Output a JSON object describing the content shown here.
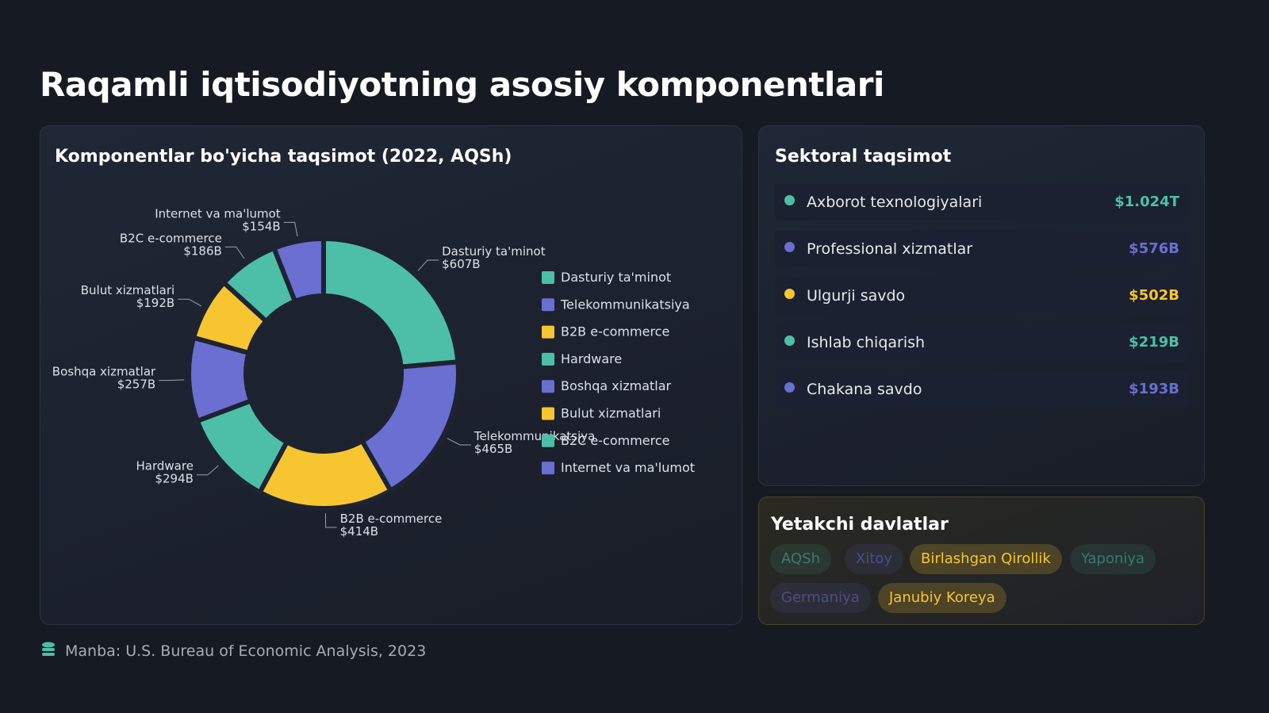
{
  "title": "Raqamli iqtisodiyotning asosiy komponentlari",
  "chart_data": {
    "type": "donut",
    "title": "Komponentlar bo'yicha taqsimot (2022, AQSh)",
    "categories": [
      "Dasturiy ta'minot",
      "Telekommunikatsiya",
      "B2B e-commerce",
      "Hardware",
      "Boshqa xizmatlar",
      "Bulut xizmatlari",
      "B2C e-commerce",
      "Internet va ma'lumot"
    ],
    "values": [
      607,
      465,
      414,
      294,
      257,
      192,
      186,
      154
    ],
    "value_labels": [
      "$607B",
      "$465B",
      "$414B",
      "$294B",
      "$257B",
      "$192B",
      "$186B",
      "$154B"
    ],
    "colors": [
      "#4dbfa8",
      "#6a6fd1",
      "#f6c530",
      "#4dbfa8",
      "#6a6fd1",
      "#f6c530",
      "#4dbfa8",
      "#6a6fd1"
    ]
  },
  "sectors": {
    "title": "Sektoral taqsimot",
    "items": [
      {
        "name": "Axborot texnologiyalari",
        "value": "$1.024T",
        "color": "#4dbfa8"
      },
      {
        "name": "Professional xizmatlar",
        "value": "$576B",
        "color": "#6a6fd1"
      },
      {
        "name": "Ulgurji savdo",
        "value": "$502B",
        "color": "#f6c530"
      },
      {
        "name": "Ishlab chiqarish",
        "value": "$219B",
        "color": "#4dbfa8"
      },
      {
        "name": "Chakana savdo",
        "value": "$193B",
        "color": "#6a6fd1"
      }
    ]
  },
  "countries": {
    "title": "Yetakchi davlatlar",
    "items": [
      {
        "name": "AQSh",
        "color": "#4dbfa8"
      },
      {
        "name": "Xitoy",
        "color": "#6a6fd1"
      },
      {
        "name": "Birlashgan Qirollik",
        "color": "#f6c530"
      },
      {
        "name": "Yaponiya",
        "color": "#4dbfa8"
      },
      {
        "name": "Germaniya",
        "color": "#6a6fd1"
      },
      {
        "name": "Janubiy Koreya",
        "color": "#f6c530"
      }
    ]
  },
  "source": "Manba: U.S. Bureau of Economic Analysis, 2023"
}
